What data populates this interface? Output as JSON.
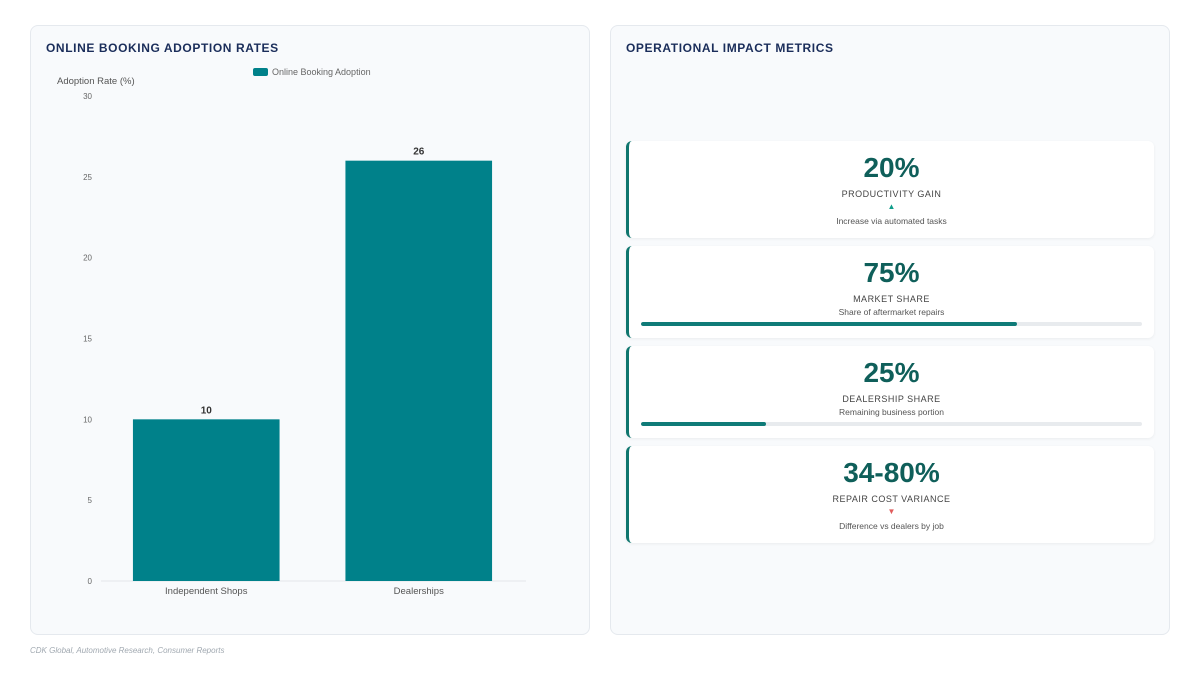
{
  "left_panel": {
    "title": "ONLINE BOOKING ADOPTION RATES"
  },
  "chart_data": {
    "type": "bar",
    "categories": [
      "Independent Shops",
      "Dealerships"
    ],
    "series": [
      {
        "name": "Online Booking Adoption",
        "values": [
          10,
          26
        ]
      }
    ],
    "data_labels": [
      "10",
      "26"
    ],
    "ylabel": "Adoption Rate (%)",
    "xlabel": "",
    "ylim": [
      0,
      30
    ],
    "yticks": [
      "0",
      "5",
      "10",
      "15",
      "20",
      "25",
      "30"
    ],
    "grid": false,
    "legend_position": "top",
    "bar_color": "#00818a"
  },
  "right_panel": {
    "title": "OPERATIONAL IMPACT METRICS",
    "metrics": [
      {
        "value": "20%",
        "label": "PRODUCTIVITY GAIN",
        "arrow": "▲",
        "arrow_color": "#0f9d8a",
        "description": "Increase via automated tasks",
        "progress": null
      },
      {
        "value": "75%",
        "label": "MARKET SHARE",
        "arrow": "",
        "arrow_color": "",
        "description": "Share of aftermarket repairs",
        "progress": 0.75
      },
      {
        "value": "25%",
        "label": "DEALERSHIP SHARE",
        "arrow": "",
        "arrow_color": "",
        "description": "Remaining business portion",
        "progress": 0.25
      },
      {
        "value": "34-80%",
        "label": "REPAIR COST VARIANCE",
        "arrow": "▼",
        "arrow_color": "#e05c5c",
        "description": "Difference vs dealers by job",
        "progress": null
      }
    ]
  },
  "footer": {
    "source": "CDK Global, Automotive Research, Consumer Reports"
  }
}
